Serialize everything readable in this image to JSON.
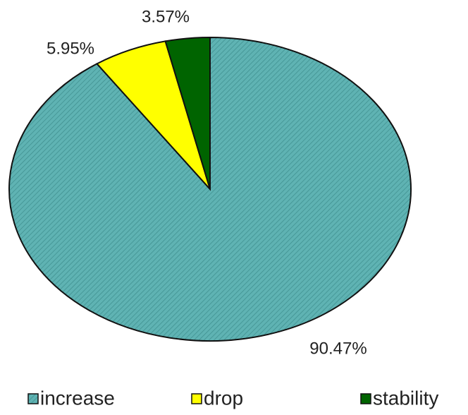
{
  "chart_data": {
    "type": "pie",
    "categories": [
      "increase",
      "drop",
      "stability"
    ],
    "values": [
      90.47,
      5.95,
      3.57
    ],
    "value_labels": [
      "90.47%",
      "5.95%",
      "3.57%"
    ],
    "colors": [
      "#5fb3b3",
      "#ffff00",
      "#006400"
    ]
  }
}
